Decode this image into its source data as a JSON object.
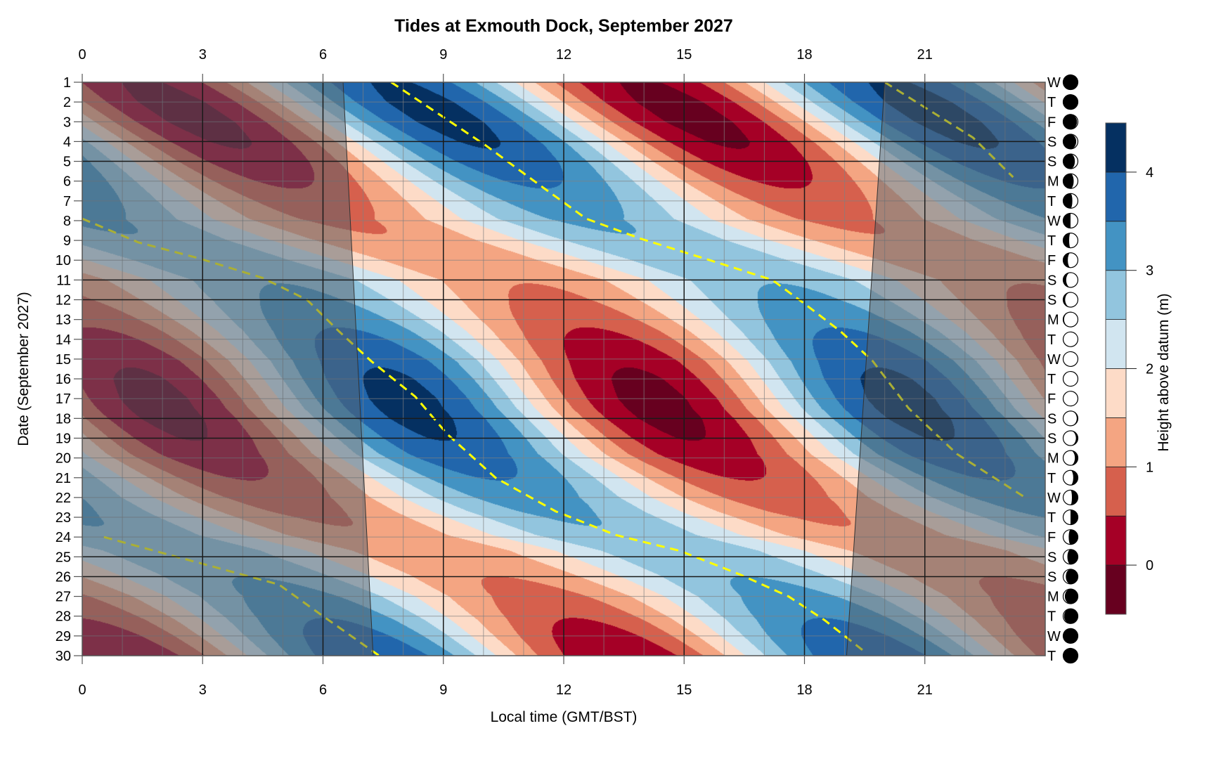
{
  "chart_data": {
    "type": "heatmap",
    "subtype": "filled-contour",
    "title": "Tides at Exmouth Dock, September 2027",
    "xlabel": "Local time (GMT/BST)",
    "ylabel": "Date (September 2027)",
    "xlim": [
      0,
      24
    ],
    "x_ticks": [
      "0",
      "3",
      "6",
      "9",
      "12",
      "15",
      "18",
      "21"
    ],
    "x_tick_values": [
      0,
      3,
      6,
      9,
      12,
      15,
      18,
      21
    ],
    "ylim": [
      1,
      30
    ],
    "y_ticks": [
      "1",
      "2",
      "3",
      "4",
      "5",
      "6",
      "7",
      "8",
      "9",
      "10",
      "11",
      "12",
      "13",
      "14",
      "15",
      "16",
      "17",
      "18",
      "19",
      "20",
      "21",
      "22",
      "23",
      "24",
      "25",
      "26",
      "27",
      "28",
      "29",
      "30"
    ],
    "weekdays": [
      "W",
      "T",
      "F",
      "S",
      "S",
      "M",
      "T",
      "W",
      "T",
      "F",
      "S",
      "S",
      "M",
      "T",
      "W",
      "T",
      "F",
      "S",
      "S",
      "M",
      "T",
      "W",
      "T",
      "F",
      "S",
      "S",
      "M",
      "T",
      "W",
      "T"
    ],
    "weekend_days": [
      4,
      5,
      11,
      12,
      18,
      19,
      25,
      26
    ],
    "moon_phase": [
      0.01,
      0.04,
      0.08,
      0.11,
      0.15,
      0.18,
      0.21,
      0.25,
      0.28,
      0.31,
      0.35,
      0.38,
      0.42,
      0.45,
      0.48,
      0.52,
      0.55,
      0.59,
      0.62,
      0.65,
      0.69,
      0.72,
      0.75,
      0.79,
      0.82,
      0.86,
      0.89,
      0.92,
      0.96,
      0.99
    ],
    "mean_level_m": 2.0,
    "tidal_period_h": 12.42,
    "tidal_amplitude_m": [
      2.07,
      2.19,
      2.19,
      2.07,
      1.87,
      1.6,
      1.33,
      1.1,
      0.95,
      0.9,
      0.97,
      1.15,
      1.39,
      1.67,
      1.92,
      2.11,
      2.2,
      2.17,
      2.03,
      1.81,
      1.54,
      1.27,
      1.06,
      0.93,
      0.91,
      1.0,
      1.21,
      1.47,
      1.75,
      1.98
    ],
    "high_tide_tracks": [
      [
        [
          1,
          7.7
        ],
        [
          4.2,
          10.06
        ],
        [
          6.2,
          11.4
        ],
        [
          7.9,
          12.56
        ],
        [
          8.9,
          13.9
        ],
        [
          10.1,
          15.8
        ],
        [
          11,
          17.2
        ],
        [
          12.2,
          18.0
        ],
        [
          13.6,
          18.9
        ],
        [
          15.1,
          19.7
        ],
        [
          17.5,
          20.6
        ],
        [
          19.8,
          21.8
        ],
        [
          22,
          23.5
        ]
      ],
      [
        [
          7.9,
          0
        ],
        [
          9.1,
          1.4
        ],
        [
          9.9,
          2.9
        ],
        [
          10.9,
          4.5
        ],
        [
          12,
          5.6
        ],
        [
          13.6,
          6.4
        ],
        [
          15.1,
          7.2
        ],
        [
          16.9,
          8.3
        ],
        [
          18.8,
          9.1
        ],
        [
          21,
          10.3
        ],
        [
          22.7,
          11.8
        ],
        [
          23.9,
          13.3
        ],
        [
          24.7,
          14.9
        ],
        [
          25.9,
          16.4
        ],
        [
          27,
          17.6
        ],
        [
          28.2,
          18.5
        ],
        [
          29.8,
          19.5
        ]
      ],
      [
        [
          1,
          20.0
        ],
        [
          3.8,
          22.2
        ],
        [
          5.8,
          23.2
        ]
      ],
      [
        [
          24,
          0.54
        ],
        [
          25.3,
          2.9
        ],
        [
          26.4,
          4.9
        ],
        [
          28,
          6.0
        ],
        [
          30,
          7.4
        ]
      ]
    ],
    "high_tide_line_color": "#FFFF00",
    "daylight": {
      "sunrise_h": {
        "day1": 6.5,
        "day30": 7.25
      },
      "sunset_h": {
        "day1": 20.0,
        "day30": 19.05
      }
    },
    "colorbar": {
      "label": "Height above datum (m)",
      "levels": [
        -0.5,
        0,
        0.5,
        1,
        1.5,
        2,
        2.5,
        3,
        3.5,
        4,
        4.5
      ],
      "colors": [
        "#67001F",
        "#A50026",
        "#D6604D",
        "#F4A582",
        "#FDDBC7",
        "#D1E5F0",
        "#92C5DE",
        "#4393C3",
        "#2166AC",
        "#053061"
      ],
      "ticks": [
        "0",
        "1",
        "2",
        "3",
        "4"
      ],
      "tick_values": [
        0,
        1,
        2,
        3,
        4
      ]
    }
  }
}
